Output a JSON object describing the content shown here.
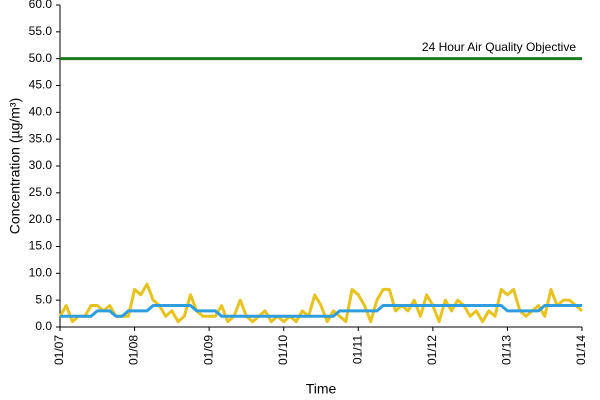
{
  "chart_data": {
    "type": "line",
    "y_label": "Concentration (µg/m³)",
    "x_label": "Time",
    "x": [
      0,
      2,
      4,
      6,
      8,
      10,
      12,
      14,
      16,
      18,
      20,
      22,
      24,
      26,
      28,
      30,
      32,
      34,
      36,
      38,
      40,
      42,
      44,
      46,
      48,
      50,
      52,
      54,
      56,
      58,
      60,
      62,
      64,
      66,
      68,
      70,
      72,
      74,
      76,
      78,
      80,
      82,
      84,
      86,
      88,
      90,
      92,
      94,
      96,
      98,
      100,
      102,
      104,
      106,
      108,
      110,
      112,
      114,
      116,
      118,
      120,
      122,
      124,
      126,
      128,
      130,
      132,
      134,
      136,
      138,
      140,
      142,
      144,
      146,
      148,
      150,
      152,
      154,
      156,
      158,
      160,
      162,
      164,
      166,
      168
    ],
    "series": [
      {
        "color": "#e8c21e",
        "values": [
          2,
          4,
          1,
          2,
          2,
          4,
          4,
          3,
          4,
          2,
          2,
          2,
          7,
          6,
          8,
          5,
          4,
          2,
          3,
          1,
          2,
          6,
          3,
          2,
          2,
          2,
          4,
          1,
          2,
          5,
          2,
          1,
          2,
          3,
          1,
          2,
          1,
          2,
          1,
          3,
          2,
          6,
          4,
          1,
          3,
          2,
          1,
          7,
          6,
          4,
          1,
          5,
          7,
          7,
          3,
          4,
          3,
          5,
          2,
          6,
          4,
          1,
          5,
          3,
          5,
          4,
          2,
          3,
          1,
          3,
          2,
          7,
          6,
          7,
          3,
          2,
          3,
          4,
          2,
          7,
          4,
          5,
          5,
          4,
          3
        ]
      },
      {
        "color": "#2e9ee0",
        "values": [
          2,
          2,
          2,
          2,
          2,
          2,
          3,
          3,
          3,
          2,
          2,
          3,
          3,
          3,
          3,
          4,
          4,
          4,
          4,
          4,
          4,
          4,
          3,
          3,
          3,
          3,
          2,
          2,
          2,
          2,
          2,
          2,
          2,
          2,
          2,
          2,
          2,
          2,
          2,
          2,
          2,
          2,
          2,
          2,
          2,
          3,
          3,
          3,
          3,
          3,
          3,
          3,
          4,
          4,
          4,
          4,
          4,
          4,
          4,
          4,
          4,
          4,
          4,
          4,
          4,
          4,
          4,
          4,
          4,
          4,
          4,
          4,
          3,
          3,
          3,
          3,
          3,
          3,
          4,
          4,
          4,
          4,
          4,
          4,
          4
        ]
      }
    ],
    "objective": {
      "value": 50,
      "label": "24 Hour Air Quality Objective",
      "color": "#1e7a1e"
    },
    "xlim": [
      0,
      168
    ],
    "xticks": [
      {
        "value": 0,
        "label": "01/07"
      },
      {
        "value": 24,
        "label": "01/08"
      },
      {
        "value": 48,
        "label": "01/09"
      },
      {
        "value": 72,
        "label": "01/10"
      },
      {
        "value": 96,
        "label": "01/11"
      },
      {
        "value": 120,
        "label": "01/12"
      },
      {
        "value": 144,
        "label": "01/13"
      },
      {
        "value": 168,
        "label": "01/14"
      }
    ],
    "ylim": [
      0,
      60
    ],
    "yticks": [
      {
        "value": 0,
        "label": "0.0"
      },
      {
        "value": 5,
        "label": "5.0"
      },
      {
        "value": 10,
        "label": "10.0"
      },
      {
        "value": 15,
        "label": "15.0"
      },
      {
        "value": 20,
        "label": "20.0"
      },
      {
        "value": 25,
        "label": "25.0"
      },
      {
        "value": 30,
        "label": "30.0"
      },
      {
        "value": 35,
        "label": "35.0"
      },
      {
        "value": 40,
        "label": "40.0"
      },
      {
        "value": 45,
        "label": "45.0"
      },
      {
        "value": 50,
        "label": "50.0"
      },
      {
        "value": 55,
        "label": "55.0"
      },
      {
        "value": 60,
        "label": "60.0"
      }
    ]
  }
}
